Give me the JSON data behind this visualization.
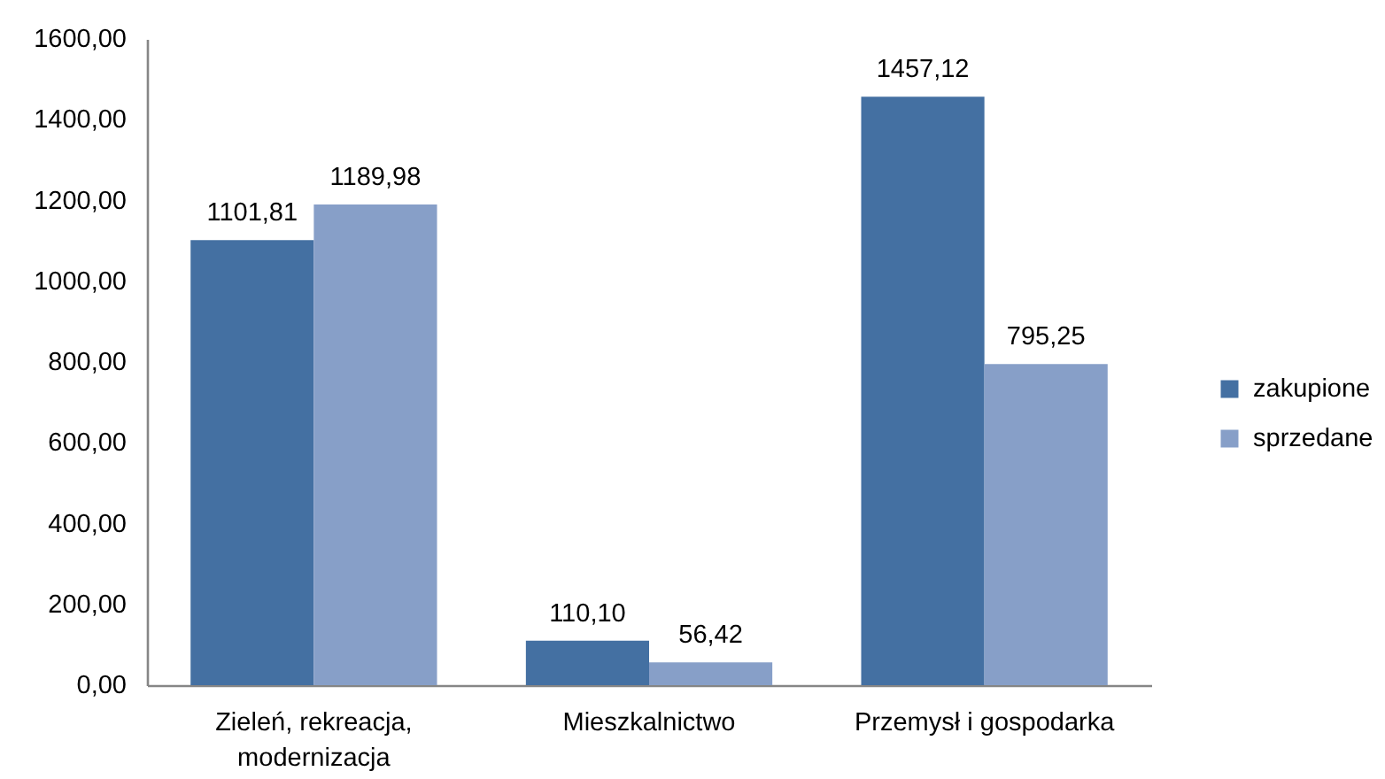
{
  "chart_data": {
    "type": "bar",
    "categories": [
      "Zieleń, rekreacja, modernizacja",
      "Mieszkalnictwo",
      "Przemysł i gospodarka"
    ],
    "series": [
      {
        "name": "zakupione",
        "color": "#4470a2",
        "values": [
          1101.81,
          110.1,
          1457.12
        ],
        "value_labels": [
          "1101,81",
          "110,10",
          "1457,12"
        ]
      },
      {
        "name": "sprzedane",
        "color": "#879fc8",
        "values": [
          1189.98,
          56.42,
          795.25
        ],
        "value_labels": [
          "1189,98",
          "56,42",
          "795,25"
        ]
      }
    ],
    "ylim": [
      0,
      1600
    ],
    "yticks": [
      {
        "value": 0,
        "label": "0,00"
      },
      {
        "value": 200,
        "label": "200,00"
      },
      {
        "value": 400,
        "label": "400,00"
      },
      {
        "value": 600,
        "label": "600,00"
      },
      {
        "value": 800,
        "label": "800,00"
      },
      {
        "value": 1000,
        "label": "1000,00"
      },
      {
        "value": 1200,
        "label": "1200,00"
      },
      {
        "value": 1400,
        "label": "1400,00"
      },
      {
        "value": 1600,
        "label": "1600,00"
      }
    ],
    "grid": false,
    "legend": "right"
  }
}
